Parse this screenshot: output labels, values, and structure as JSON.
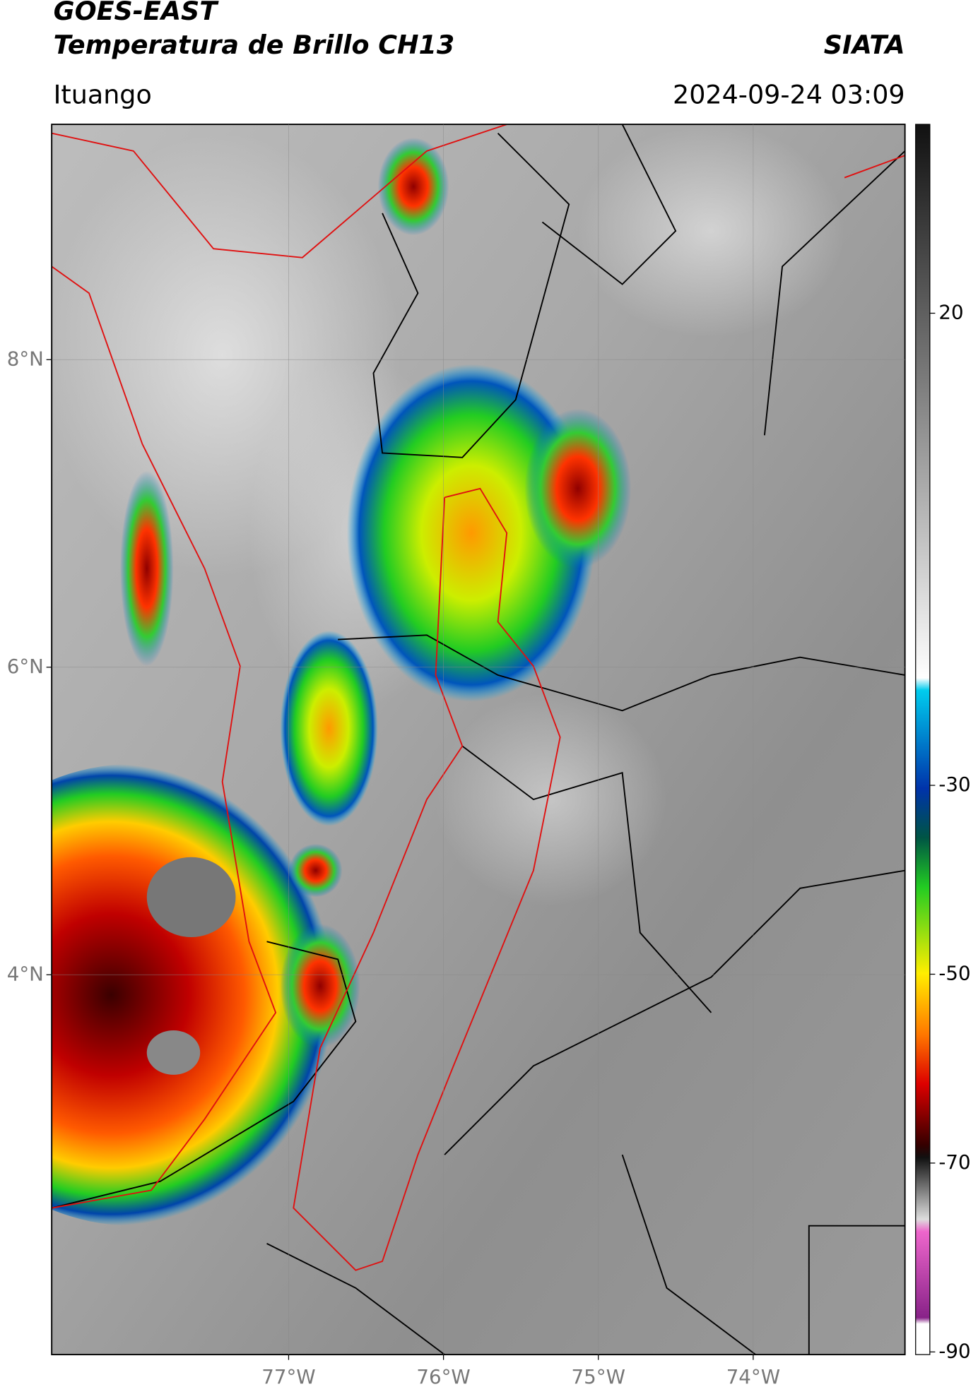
{
  "header": {
    "line1": "GOES-EAST",
    "line2": "Temperatura de Brillo CH13",
    "brand": "SIATA",
    "place": "Ituango",
    "datetime": "2024-09-24 03:09"
  },
  "map": {
    "xlim": [
      -78.53,
      -73.02
    ],
    "ylim": [
      1.53,
      9.53
    ],
    "xticks": [
      {
        "value": -77,
        "label": "77°W"
      },
      {
        "value": -76,
        "label": "76°W"
      },
      {
        "value": -75,
        "label": "75°W"
      },
      {
        "value": -74,
        "label": "74°W"
      }
    ],
    "yticks": [
      {
        "value": 8,
        "label": "8°N"
      },
      {
        "value": 6,
        "label": "6°N"
      },
      {
        "value": 4,
        "label": "4°N"
      }
    ],
    "grid": true
  },
  "colorbar": {
    "lim": [
      -90,
      40
    ],
    "ticks": [
      20,
      -30,
      -50,
      -70,
      -90
    ]
  }
}
